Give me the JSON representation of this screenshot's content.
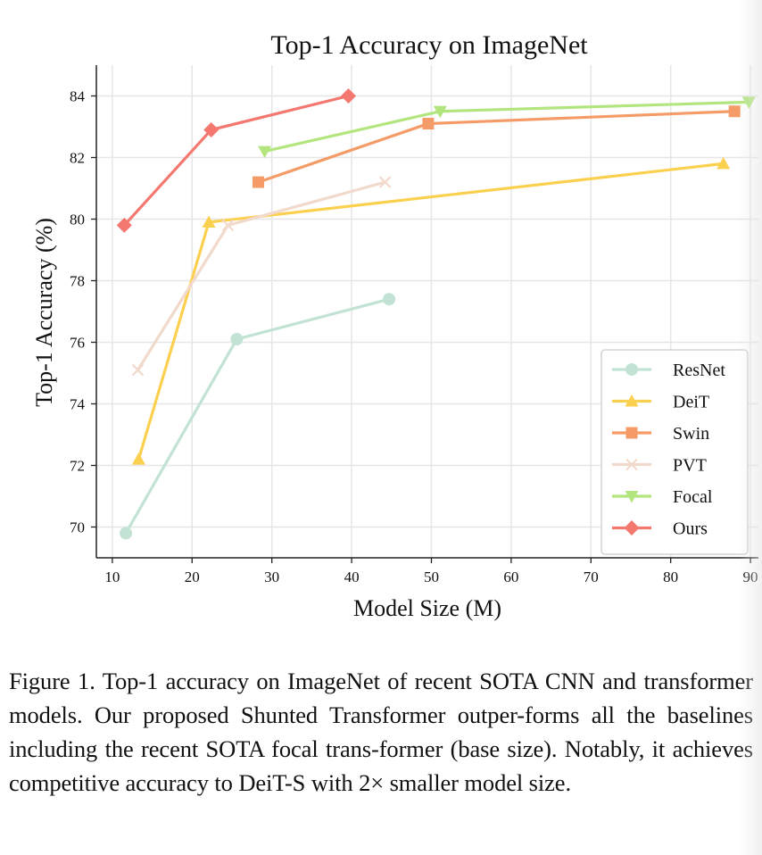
{
  "chart_data": {
    "type": "line",
    "title": "Top-1 Accuracy on ImageNet",
    "xlabel": "Model Size (M)",
    "ylabel": "Top-1 Accuracy (%)",
    "xlim": [
      8,
      91
    ],
    "ylim": [
      69,
      85
    ],
    "xticks": [
      10,
      20,
      30,
      40,
      50,
      60,
      70,
      80,
      90
    ],
    "yticks": [
      70,
      72,
      74,
      76,
      78,
      80,
      82,
      84
    ],
    "grid": true,
    "legend_position": "lower-right",
    "series": [
      {
        "name": "ResNet",
        "color": "#c2e3d3",
        "marker": "circle",
        "x": [
          11.7,
          25.6,
          44.7
        ],
        "y": [
          69.8,
          76.1,
          77.4
        ]
      },
      {
        "name": "DeiT",
        "color": "#fcd04f",
        "marker": "triangle-up",
        "x": [
          13.3,
          22.1,
          86.6
        ],
        "y": [
          72.2,
          79.9,
          81.8
        ]
      },
      {
        "name": "Swin",
        "color": "#f59b68",
        "marker": "square",
        "x": [
          28.3,
          49.6,
          88.0
        ],
        "y": [
          81.2,
          83.1,
          83.5
        ]
      },
      {
        "name": "PVT",
        "color": "#f1d9cb",
        "marker": "x",
        "x": [
          13.2,
          24.5,
          44.2
        ],
        "y": [
          75.1,
          79.8,
          81.2
        ]
      },
      {
        "name": "Focal",
        "color": "#b3e57f",
        "marker": "triangle-down",
        "x": [
          29.1,
          51.1,
          89.8
        ],
        "y": [
          82.2,
          83.5,
          83.8
        ]
      },
      {
        "name": "Ours",
        "color": "#f4786f",
        "marker": "diamond",
        "x": [
          11.5,
          22.4,
          39.6
        ],
        "y": [
          79.8,
          82.9,
          84.0
        ]
      }
    ]
  },
  "caption": "Figure 1. Top-1 accuracy on ImageNet of recent SOTA CNN and transformer models. Our proposed Shunted Transformer outper-forms all the baselines including the recent SOTA focal trans-former (base size). Notably, it achieves competitive accuracy to DeiT-S with 2× smaller model size."
}
